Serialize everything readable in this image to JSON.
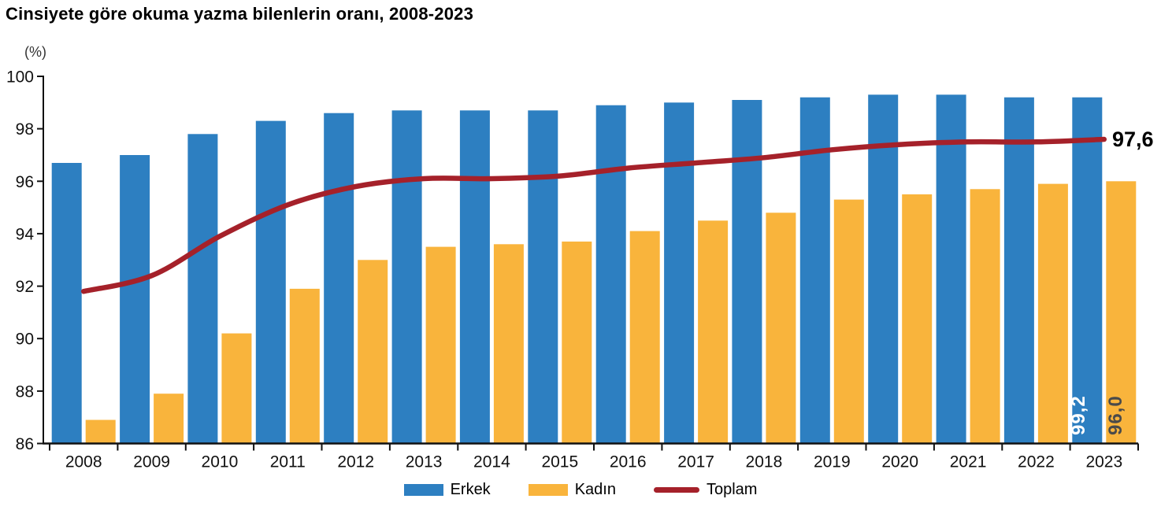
{
  "title": "Cinsiyete göre okuma yazma bilenlerin oranı, 2008-2023",
  "chart_data": {
    "type": "bar",
    "subtype": "grouped bars with overlay line",
    "unit_label": "(%)",
    "categories": [
      "2008",
      "2009",
      "2010",
      "2011",
      "2012",
      "2013",
      "2014",
      "2015",
      "2016",
      "2017",
      "2018",
      "2019",
      "2020",
      "2021",
      "2022",
      "2023"
    ],
    "series": [
      {
        "name": "Erkek",
        "type": "bar",
        "color": "#2D7FC1",
        "values": [
          96.7,
          97.0,
          97.8,
          98.3,
          98.6,
          98.7,
          98.7,
          98.7,
          98.9,
          99.0,
          99.1,
          99.2,
          99.3,
          99.3,
          99.2,
          99.2
        ]
      },
      {
        "name": "Kadın",
        "type": "bar",
        "color": "#F9B43C",
        "values": [
          86.9,
          87.9,
          90.2,
          91.9,
          93.0,
          93.5,
          93.6,
          93.7,
          94.1,
          94.5,
          94.8,
          95.3,
          95.5,
          95.7,
          95.9,
          96.0
        ]
      },
      {
        "name": "Toplam",
        "type": "line",
        "color": "#A5212A",
        "values": [
          91.8,
          92.4,
          93.9,
          95.1,
          95.8,
          96.1,
          96.1,
          96.2,
          96.5,
          96.7,
          96.9,
          97.2,
          97.4,
          97.5,
          97.5,
          97.6
        ]
      }
    ],
    "ylim": [
      86,
      100
    ],
    "yticks": [
      "86",
      "88",
      "90",
      "92",
      "94",
      "96",
      "98",
      "100"
    ],
    "xlabel": "",
    "ylabel": "(%)",
    "grid": false,
    "legend_position": "bottom",
    "end_labels": {
      "erkek": "99,2",
      "kadin": "96,0",
      "toplam": "97,6"
    },
    "axis_color": "#111111"
  }
}
